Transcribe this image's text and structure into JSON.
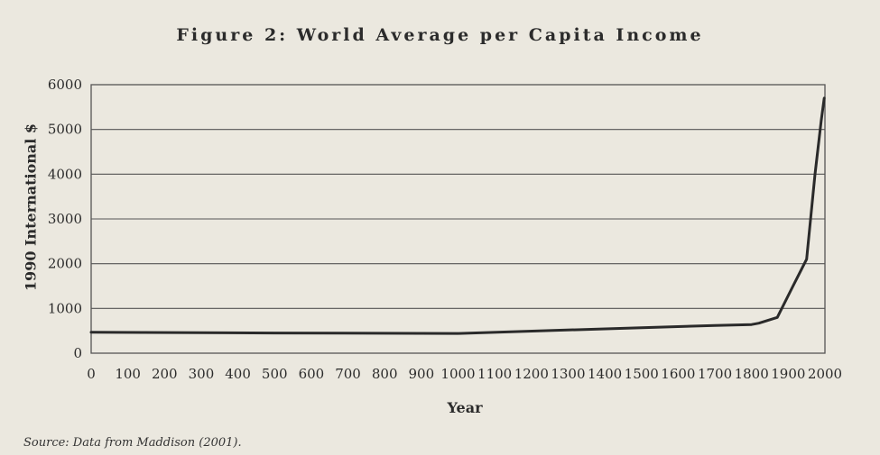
{
  "chart_data": {
    "type": "line",
    "title": "Figure 2: World Average per Capita Income",
    "xlabel": "Year",
    "ylabel": "1990 International $",
    "xlim": [
      0,
      2000
    ],
    "ylim": [
      0,
      6000
    ],
    "x_ticks": [
      0,
      100,
      200,
      300,
      400,
      500,
      600,
      700,
      800,
      900,
      1000,
      1100,
      1200,
      1300,
      1400,
      1500,
      1600,
      1700,
      1800,
      1900,
      2000
    ],
    "y_ticks": [
      0,
      1000,
      2000,
      3000,
      4000,
      5000,
      6000
    ],
    "grid": "horizontal",
    "color": "#2a2a2a",
    "series": [
      {
        "x": [
          0,
          500,
          1000,
          1500,
          1700,
          1800,
          1820,
          1870,
          1913,
          1950,
          1973,
          1990,
          1998
        ],
        "values": [
          470,
          450,
          440,
          570,
          620,
          640,
          670,
          800,
          1500,
          2100,
          4000,
          5200,
          5700
        ]
      }
    ]
  },
  "source_note": "Source: Data from Maddison (2001)."
}
